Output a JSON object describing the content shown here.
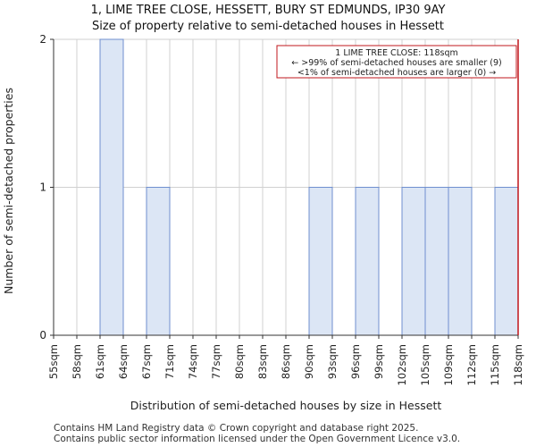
{
  "chart_data": {
    "type": "bar",
    "title": "1, LIME TREE CLOSE, HESSETT, BURY ST EDMUNDS, IP30 9AY",
    "subtitle": "Size of property relative to semi-detached houses in Hessett",
    "xlabel": "Distribution of semi-detached houses by size in Hessett",
    "ylabel": "Number of semi-detached properties",
    "categories": [
      "55sqm",
      "58sqm",
      "61sqm",
      "64sqm",
      "67sqm",
      "71sqm",
      "74sqm",
      "77sqm",
      "80sqm",
      "83sqm",
      "86sqm",
      "90sqm",
      "93sqm",
      "96sqm",
      "99sqm",
      "102sqm",
      "105sqm",
      "109sqm",
      "112sqm",
      "115sqm",
      "118sqm"
    ],
    "bins": [
      {
        "from": "55sqm",
        "to": "58sqm",
        "count": 0
      },
      {
        "from": "58sqm",
        "to": "61sqm",
        "count": 0
      },
      {
        "from": "61sqm",
        "to": "64sqm",
        "count": 2
      },
      {
        "from": "64sqm",
        "to": "67sqm",
        "count": 0
      },
      {
        "from": "67sqm",
        "to": "71sqm",
        "count": 1
      },
      {
        "from": "71sqm",
        "to": "74sqm",
        "count": 0
      },
      {
        "from": "74sqm",
        "to": "77sqm",
        "count": 0
      },
      {
        "from": "77sqm",
        "to": "80sqm",
        "count": 0
      },
      {
        "from": "80sqm",
        "to": "83sqm",
        "count": 0
      },
      {
        "from": "83sqm",
        "to": "86sqm",
        "count": 0
      },
      {
        "from": "86sqm",
        "to": "90sqm",
        "count": 0
      },
      {
        "from": "90sqm",
        "to": "93sqm",
        "count": 1
      },
      {
        "from": "93sqm",
        "to": "96sqm",
        "count": 0
      },
      {
        "from": "96sqm",
        "to": "99sqm",
        "count": 1
      },
      {
        "from": "99sqm",
        "to": "102sqm",
        "count": 0
      },
      {
        "from": "102sqm",
        "to": "105sqm",
        "count": 1
      },
      {
        "from": "105sqm",
        "to": "109sqm",
        "count": 1
      },
      {
        "from": "109sqm",
        "to": "112sqm",
        "count": 1
      },
      {
        "from": "112sqm",
        "to": "115sqm",
        "count": 0
      },
      {
        "from": "115sqm",
        "to": "118sqm",
        "count": 1
      }
    ],
    "ylim": [
      0,
      2
    ],
    "yticks": [
      0,
      1,
      2
    ],
    "grid": true,
    "marker": {
      "value_index": 20,
      "label": "118sqm"
    },
    "annotation": [
      "1 LIME TREE CLOSE: 118sqm",
      "← >99% of semi-detached houses are smaller (9)",
      "<1% of semi-detached houses are larger (0) →"
    ],
    "colors": {
      "bar_fill": "#dce6f5",
      "bar_stroke": "#6f8fcf",
      "marker": "#c0171c",
      "grid": "#d0d0d0"
    }
  },
  "footer": [
    "Contains HM Land Registry data © Crown copyright and database right 2025.",
    "Contains public sector information licensed under the Open Government Licence v3.0."
  ]
}
